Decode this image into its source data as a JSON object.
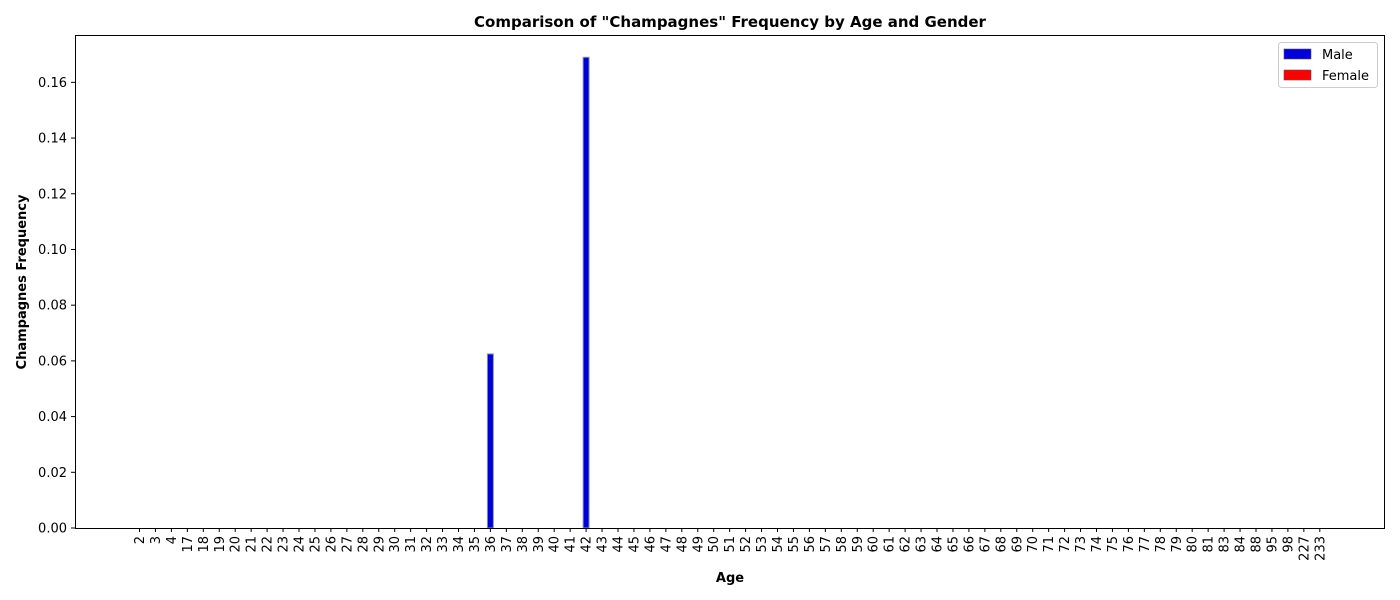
{
  "chart_data": {
    "type": "bar",
    "title": "Comparison of \"Champagnes\" Frequency by Age and Gender",
    "xlabel": "Age",
    "ylabel": "Champagnes Frequency",
    "ylim": [
      0,
      0.177
    ],
    "yticks": [
      "0.00",
      "0.02",
      "0.04",
      "0.06",
      "0.08",
      "0.10",
      "0.12",
      "0.14",
      "0.16"
    ],
    "categories": [
      "2",
      "3",
      "4",
      "17",
      "18",
      "19",
      "20",
      "21",
      "22",
      "23",
      "24",
      "25",
      "26",
      "27",
      "28",
      "29",
      "30",
      "31",
      "32",
      "33",
      "34",
      "35",
      "36",
      "37",
      "38",
      "39",
      "40",
      "41",
      "42",
      "43",
      "44",
      "45",
      "46",
      "47",
      "48",
      "49",
      "50",
      "51",
      "52",
      "53",
      "54",
      "55",
      "56",
      "57",
      "58",
      "59",
      "60",
      "61",
      "62",
      "63",
      "64",
      "65",
      "66",
      "67",
      "68",
      "69",
      "70",
      "71",
      "72",
      "73",
      "74",
      "75",
      "76",
      "77",
      "78",
      "79",
      "80",
      "81",
      "83",
      "84",
      "88",
      "95",
      "98",
      "227",
      "233"
    ],
    "series": [
      {
        "name": "Male",
        "color": "#0000dd",
        "values": [
          0,
          0,
          0,
          0,
          0,
          0,
          0,
          0,
          0,
          0,
          0,
          0,
          0,
          0,
          0,
          0,
          0,
          0,
          0,
          0,
          0,
          0,
          0.0625,
          0,
          0,
          0,
          0,
          0,
          0.169,
          0,
          0,
          0,
          0,
          0,
          0,
          0,
          0,
          0,
          0,
          0,
          0,
          0,
          0,
          0,
          0,
          0,
          0,
          0,
          0,
          0,
          0,
          0,
          0,
          0,
          0,
          0,
          0,
          0,
          0,
          0,
          0,
          0,
          0,
          0,
          0,
          0,
          0,
          0,
          0,
          0,
          0,
          0,
          0,
          0,
          0
        ]
      },
      {
        "name": "Female",
        "color": "#ff0000",
        "values": [
          0,
          0,
          0,
          0,
          0,
          0,
          0,
          0,
          0,
          0,
          0,
          0,
          0,
          0,
          0,
          0,
          0,
          0,
          0,
          0,
          0,
          0,
          0,
          0,
          0,
          0,
          0,
          0,
          0,
          0,
          0,
          0,
          0,
          0,
          0,
          0,
          0,
          0,
          0,
          0,
          0,
          0,
          0,
          0,
          0,
          0,
          0,
          0,
          0,
          0,
          0,
          0,
          0,
          0,
          0,
          0,
          0,
          0,
          0,
          0,
          0,
          0,
          0,
          0,
          0,
          0,
          0,
          0,
          0,
          0,
          0,
          0,
          0,
          0,
          0
        ]
      }
    ],
    "grid": false,
    "legend_position": "top-right"
  }
}
